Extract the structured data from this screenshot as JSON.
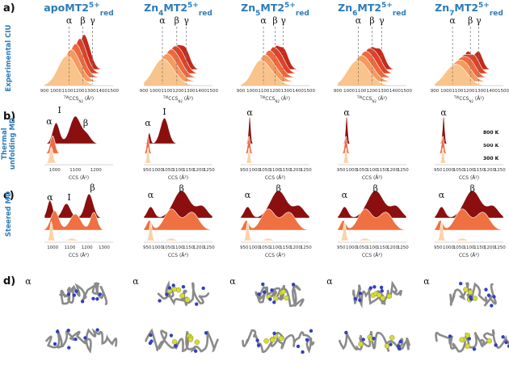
{
  "panels": [
    "a)",
    "b)",
    "c)",
    "d)"
  ],
  "row_labels": {
    "ciu": "Experimental CIU",
    "thermal": [
      "Thermal",
      "unfolding MD"
    ],
    "steered": "Steered MD"
  },
  "columns": [
    {
      "element": "apo",
      "protein": "MT2",
      "charge": "5+",
      "state": "red",
      "ciu": [
        "α",
        "β",
        "γ"
      ],
      "thermal": [
        "α",
        "I",
        "β"
      ],
      "steered": [
        "α",
        "I",
        "β"
      ],
      "structure": "α"
    },
    {
      "element": "Zn",
      "count": "4",
      "protein": "MT2",
      "charge": "5+",
      "state": "red",
      "ciu": [
        "α",
        "β",
        "γ"
      ],
      "thermal": [
        "α",
        "I"
      ],
      "steered": [
        "α",
        "β"
      ],
      "structure": "α"
    },
    {
      "element": "Zn",
      "count": "5",
      "protein": "MT2",
      "charge": "5+",
      "state": "red",
      "ciu": [
        "α",
        "β",
        "γ"
      ],
      "thermal": [
        "α"
      ],
      "steered": [
        "α",
        "β"
      ],
      "structure": "α"
    },
    {
      "element": "Zn",
      "count": "6",
      "protein": "MT2",
      "charge": "5+",
      "state": "red",
      "ciu": [
        "α",
        "β",
        "γ"
      ],
      "thermal": [
        "α"
      ],
      "steered": [
        "α",
        "β"
      ],
      "structure": "α"
    },
    {
      "element": "Zn",
      "count": "7",
      "protein": "MT2",
      "charge": "5+",
      "state": "red",
      "ciu": [
        "α",
        "β",
        "γ"
      ],
      "thermal": [
        "α"
      ],
      "steered": [
        "α",
        "β"
      ],
      "structure": "α"
    }
  ],
  "ciu_axis": {
    "ticks": [
      900,
      1000,
      1100,
      1200,
      1300,
      1400,
      1500
    ],
    "label": {
      "pre": "TW",
      "main": "CCS",
      "sub": "N2",
      "unit": " (Å²)"
    }
  },
  "md_axis_label": "CCS (Å²)",
  "thermal_ticks": [
    [
      1000,
      1100,
      1200
    ],
    [
      950,
      1000,
      1050,
      1100,
      1150,
      1200,
      1250
    ],
    [
      950,
      1000,
      1050,
      1100,
      1150,
      1200,
      1250
    ],
    [
      950,
      1000,
      1050,
      1100,
      1150,
      1200,
      1250
    ],
    [
      950,
      1000,
      1050,
      1100,
      1150,
      1200,
      1250
    ]
  ],
  "steered_ticks": [
    [
      1000,
      1100,
      1200,
      1300
    ],
    [
      950,
      1000,
      1050,
      1100,
      1150,
      1200,
      1250
    ],
    [
      950,
      1000,
      1050,
      1100,
      1150,
      1200,
      1250
    ],
    [
      950,
      1000,
      1050,
      1100,
      1150,
      1200,
      1250
    ],
    [
      950,
      1000,
      1050,
      1100,
      1150,
      1200,
      1250
    ]
  ],
  "temperatures": [
    "800 K",
    "500 K",
    "300 K"
  ]
}
